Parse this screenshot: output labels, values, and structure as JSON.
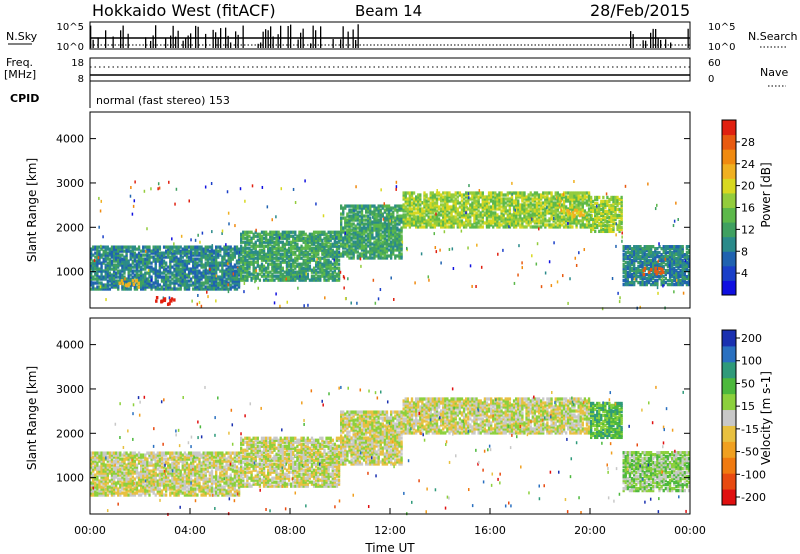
{
  "header": {
    "site": "Hokkaido West (fitACF)",
    "beam": "Beam 14",
    "date": "28/Feb/2015"
  },
  "strips": {
    "nsky_label": "N.Sky",
    "nsearch_label": "N.Search",
    "freq_label_1": "Freq.",
    "freq_label_2": "[MHz]",
    "nave_label": "Nave",
    "cpid_label": "CPID",
    "cpid_text": "normal (fast stereo) 153",
    "left_ticks_top": [
      "10^5",
      "10^0"
    ],
    "right_ticks_top": [
      "10^5",
      "10^0"
    ],
    "left_ticks_freq": [
      "18",
      "8"
    ],
    "right_ticks_nave": [
      "60",
      "0"
    ]
  },
  "chart_data": [
    {
      "type": "heatmap",
      "title": "",
      "xlabel": "",
      "ylabel": "Slant Range [km]",
      "xlim": [
        "00:00",
        "24:00"
      ],
      "ylim": [
        180,
        4600
      ],
      "y_ticks": [
        "1000",
        "2000",
        "3000",
        "4000"
      ],
      "colorbar": {
        "label": "Power [dB]",
        "ticks": [
          "4",
          "8",
          "12",
          "16",
          "20",
          "24",
          "28"
        ],
        "range": [
          0,
          32
        ],
        "colors": [
          "#1010e0",
          "#1a3fc8",
          "#1f62b0",
          "#2a8a8a",
          "#3fa060",
          "#5cb84a",
          "#93cc3c",
          "#d8d820",
          "#f0b020",
          "#f08a10",
          "#e85a10",
          "#e02010"
        ]
      },
      "band_segments_km": [
        {
          "t0": 0,
          "t1": 6,
          "lo": 600,
          "hi": 1550,
          "level": 3
        },
        {
          "t0": 6,
          "t1": 10,
          "lo": 800,
          "hi": 1900,
          "level": 4
        },
        {
          "t0": 10,
          "t1": 12.5,
          "lo": 1300,
          "hi": 2500,
          "level": 4
        },
        {
          "t0": 12.5,
          "t1": 20,
          "lo": 2000,
          "hi": 2800,
          "level": 6
        },
        {
          "t0": 20,
          "t1": 21.3,
          "lo": 1900,
          "hi": 2700,
          "level": 6
        },
        {
          "t0": 21.3,
          "t1": 24,
          "lo": 700,
          "hi": 1600,
          "level": 3
        }
      ],
      "hotspots_km": [
        {
          "t": 3.0,
          "range": 380,
          "level": 11
        },
        {
          "t": 1.5,
          "range": 760,
          "level": 8
        },
        {
          "t": 19.3,
          "range": 2350,
          "level": 8
        },
        {
          "t": 22.5,
          "range": 1050,
          "level": 10
        }
      ]
    },
    {
      "type": "heatmap",
      "title": "",
      "xlabel": "Time UT",
      "ylabel": "Slant Range [km]",
      "xlim": [
        "00:00",
        "24:00"
      ],
      "ylim": [
        180,
        4600
      ],
      "x_ticks": [
        "00:00",
        "04:00",
        "08:00",
        "12:00",
        "16:00",
        "20:00",
        "00:00"
      ],
      "y_ticks": [
        "1000",
        "2000",
        "3000",
        "4000"
      ],
      "colorbar": {
        "label": "Velocity [m s-1]",
        "ticks": [
          "200",
          "100",
          "50",
          "15",
          "-15",
          "-50",
          "-100",
          "-200"
        ],
        "colors": [
          "#1a30b0",
          "#2a70c0",
          "#2f9a7a",
          "#4cb83c",
          "#8cd03c",
          "#c8c8c8",
          "#e8c040",
          "#f0a020",
          "#f07a10",
          "#e84a10",
          "#e01010"
        ]
      },
      "band_segments_km": [
        {
          "t0": 0,
          "t1": 6,
          "lo": 600,
          "hi": 1550,
          "level": 5
        },
        {
          "t0": 6,
          "t1": 10,
          "lo": 800,
          "hi": 1900,
          "level": 5
        },
        {
          "t0": 10,
          "t1": 12.5,
          "lo": 1300,
          "hi": 2500,
          "level": 5
        },
        {
          "t0": 12.5,
          "t1": 20,
          "lo": 2000,
          "hi": 2800,
          "level": 5
        },
        {
          "t0": 20,
          "t1": 21.3,
          "lo": 1900,
          "hi": 2700,
          "level": 3
        },
        {
          "t0": 21.3,
          "t1": 24,
          "lo": 700,
          "hi": 1600,
          "level": 4
        }
      ]
    }
  ]
}
